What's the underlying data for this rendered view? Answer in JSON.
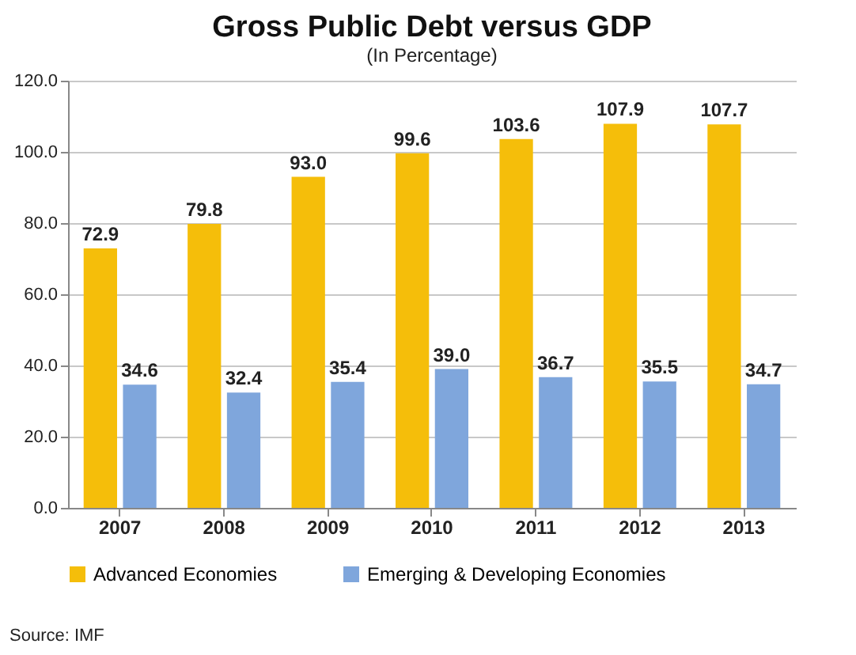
{
  "chart_data": {
    "type": "bar",
    "title": "Gross Public Debt versus GDP",
    "subtitle": "(In Percentage)",
    "categories": [
      "2007",
      "2008",
      "2009",
      "2010",
      "2011",
      "2012",
      "2013"
    ],
    "series": [
      {
        "name": "Advanced Economies",
        "color": "#f5be0a",
        "values": [
          72.9,
          79.8,
          93.0,
          99.6,
          103.6,
          107.9,
          107.7
        ],
        "value_labels": [
          "72.9",
          "79.8",
          "93.0",
          "99.6",
          "103.6",
          "107.9",
          "107.7"
        ]
      },
      {
        "name": "Emerging & Developing  Economies",
        "color": "#7fa6dc",
        "values": [
          34.6,
          32.4,
          35.4,
          39.0,
          36.7,
          35.5,
          34.7
        ],
        "value_labels": [
          "34.6",
          "32.4",
          "35.4",
          "39.0",
          "36.7",
          "35.5",
          "34.7"
        ]
      }
    ],
    "ylim": [
      0,
      120
    ],
    "yticks": [
      {
        "value": 0,
        "label": "0.0"
      },
      {
        "value": 20,
        "label": "20.0"
      },
      {
        "value": 40,
        "label": "40.0"
      },
      {
        "value": 60,
        "label": "60.0"
      },
      {
        "value": 80,
        "label": "80.0"
      },
      {
        "value": 100,
        "label": "100.0"
      },
      {
        "value": 120,
        "label": "120.0"
      }
    ],
    "grid": "y",
    "legend": "bottom",
    "annotations": [
      "Source: IMF"
    ]
  }
}
